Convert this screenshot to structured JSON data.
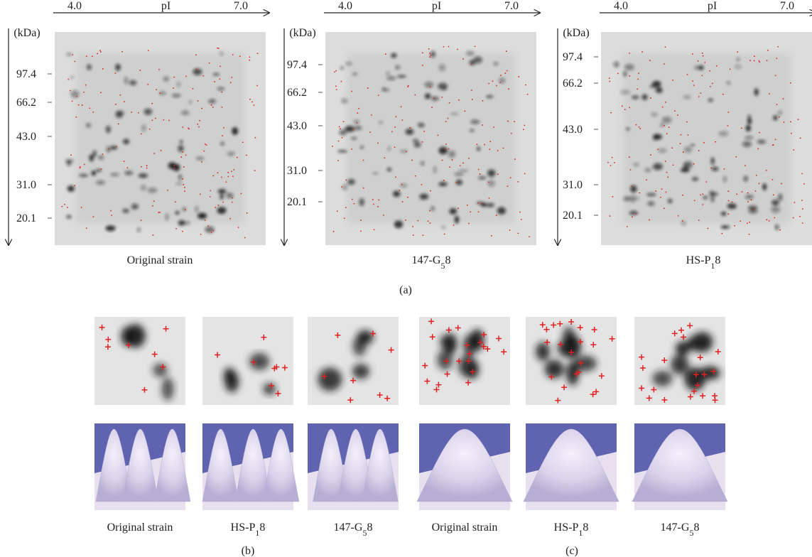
{
  "panel_a": {
    "label": "(a)",
    "x_axis": {
      "title": "pI",
      "ticks": [
        "4.0",
        "7.0"
      ]
    },
    "y_axis": {
      "unit": "(kDa)",
      "ticks": [
        "97.4",
        "66.2",
        "43.0",
        "31.0",
        "20.1"
      ]
    },
    "gels": [
      {
        "caption": [
          "Original strain"
        ]
      },
      {
        "caption": [
          "147-G",
          "5",
          "8"
        ]
      },
      {
        "caption": [
          "HS-P",
          "1",
          "8"
        ]
      }
    ]
  },
  "panel_b": {
    "label": "(b)",
    "captions": [
      [
        "Original strain"
      ],
      [
        "HS-P",
        "1",
        "8"
      ],
      [
        "147-G",
        "5",
        "8"
      ]
    ]
  },
  "panel_c": {
    "label": "(c)",
    "captions": [
      [
        "Original strain"
      ],
      [
        "HS-P",
        "1",
        "8"
      ],
      [
        "147-G",
        "5",
        "8"
      ]
    ]
  }
}
